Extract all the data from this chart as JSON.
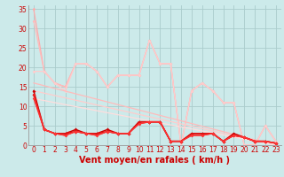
{
  "background_color": "#cceaea",
  "grid_color": "#aacccc",
  "xlabel": "Vent moyen/en rafales ( km/h )",
  "xlabel_color": "#cc0000",
  "xlabel_fontsize": 7,
  "tick_color": "#cc0000",
  "tick_fontsize": 5.5,
  "xlim": [
    -0.5,
    23.5
  ],
  "ylim": [
    0,
    36
  ],
  "yticks": [
    0,
    5,
    10,
    15,
    20,
    25,
    30,
    35
  ],
  "xticks": [
    0,
    1,
    2,
    3,
    4,
    5,
    6,
    7,
    8,
    9,
    10,
    11,
    12,
    13,
    14,
    15,
    16,
    17,
    18,
    19,
    20,
    21,
    22,
    23
  ],
  "series": [
    {
      "x": [
        0,
        1,
        2,
        3,
        4,
        5,
        6,
        7,
        8,
        9,
        10,
        11,
        12,
        13,
        14,
        15,
        16,
        17,
        18,
        19,
        20,
        21,
        22,
        23
      ],
      "y": [
        35,
        19,
        16,
        15,
        21,
        21,
        19,
        15,
        18,
        18,
        18,
        27,
        21,
        21,
        0,
        14,
        16,
        14,
        11,
        11,
        0,
        0,
        5,
        1
      ],
      "color": "#ffaaaa",
      "lw": 0.9,
      "marker": "D",
      "ms": 1.8
    },
    {
      "x": [
        0,
        1,
        2,
        3,
        4,
        5,
        6,
        7,
        8,
        9,
        10,
        11,
        12,
        13,
        14,
        15,
        16,
        17,
        18,
        19,
        20,
        21,
        22,
        23
      ],
      "y": [
        32,
        19,
        16,
        15,
        21,
        21,
        19,
        15,
        18,
        18,
        18,
        27,
        21,
        21,
        0,
        14,
        16,
        14,
        11,
        11,
        0,
        0,
        5,
        1
      ],
      "color": "#ffbbbb",
      "lw": 0.9,
      "marker": "D",
      "ms": 1.8
    },
    {
      "x": [
        0,
        1,
        2,
        3,
        4,
        5,
        6,
        7,
        8,
        9,
        10,
        11,
        12,
        13,
        14,
        15,
        16,
        17,
        18,
        19,
        20,
        21,
        22,
        23
      ],
      "y": [
        19,
        19,
        16,
        14,
        21,
        21,
        19,
        15,
        18,
        18,
        18,
        27,
        21,
        21,
        0,
        14,
        16,
        14,
        11,
        11,
        0,
        0,
        5,
        1
      ],
      "color": "#ffcccc",
      "lw": 0.9,
      "marker": "D",
      "ms": 1.8
    },
    {
      "x": [
        0,
        23
      ],
      "y": [
        16,
        0
      ],
      "color": "#ffbbbb",
      "lw": 0.9,
      "marker": null,
      "ms": 0
    },
    {
      "x": [
        0,
        23
      ],
      "y": [
        14,
        0
      ],
      "color": "#ffcccc",
      "lw": 0.9,
      "marker": null,
      "ms": 0
    },
    {
      "x": [
        0,
        23
      ],
      "y": [
        12,
        0
      ],
      "color": "#ffdddd",
      "lw": 0.9,
      "marker": null,
      "ms": 0
    },
    {
      "x": [
        0,
        1,
        2,
        3,
        4,
        5,
        6,
        7,
        8,
        9,
        10,
        11,
        12,
        13,
        14,
        15,
        16,
        17,
        18,
        19,
        20,
        21,
        22,
        23
      ],
      "y": [
        14,
        4,
        3,
        3,
        4,
        3,
        3,
        4,
        3,
        3,
        6,
        6,
        6,
        1,
        1,
        3,
        3,
        3,
        1,
        3,
        2,
        1,
        1,
        0.5
      ],
      "color": "#cc0000",
      "lw": 1.1,
      "marker": "D",
      "ms": 2.0
    },
    {
      "x": [
        0,
        1,
        2,
        3,
        4,
        5,
        6,
        7,
        8,
        9,
        10,
        11,
        12,
        13,
        14,
        15,
        16,
        17,
        18,
        19,
        20,
        21,
        22,
        23
      ],
      "y": [
        13,
        4,
        3,
        3,
        3.5,
        3,
        3,
        3.5,
        3,
        3,
        6,
        6,
        6,
        1,
        1,
        3,
        3,
        3,
        1,
        2.5,
        2,
        1,
        1,
        0.5
      ],
      "color": "#dd1111",
      "lw": 1.1,
      "marker": "D",
      "ms": 2.0
    },
    {
      "x": [
        0,
        1,
        2,
        3,
        4,
        5,
        6,
        7,
        8,
        9,
        10,
        11,
        12,
        13,
        14,
        15,
        16,
        17,
        18,
        19,
        20,
        21,
        22,
        23
      ],
      "y": [
        13,
        4,
        3,
        2.5,
        3.5,
        3,
        2.5,
        3.5,
        3,
        3,
        5.5,
        6,
        6,
        1,
        1,
        2.5,
        2.5,
        3,
        1,
        2.5,
        2,
        1,
        1,
        0.5
      ],
      "color": "#ee2222",
      "lw": 0.9,
      "marker": "D",
      "ms": 1.8
    },
    {
      "x": [
        0,
        1,
        2,
        3,
        4,
        5,
        6,
        7,
        8,
        9,
        10,
        11,
        12,
        13,
        14,
        15,
        16,
        17,
        18,
        19,
        20,
        21,
        22,
        23
      ],
      "y": [
        12,
        4,
        3,
        2.5,
        3.5,
        3,
        2.5,
        3.5,
        3,
        3,
        5.5,
        6,
        6,
        1,
        1,
        2.5,
        2.5,
        3,
        1,
        2.5,
        2,
        1,
        1,
        0.5
      ],
      "color": "#ff3333",
      "lw": 0.9,
      "marker": "D",
      "ms": 1.8
    }
  ]
}
